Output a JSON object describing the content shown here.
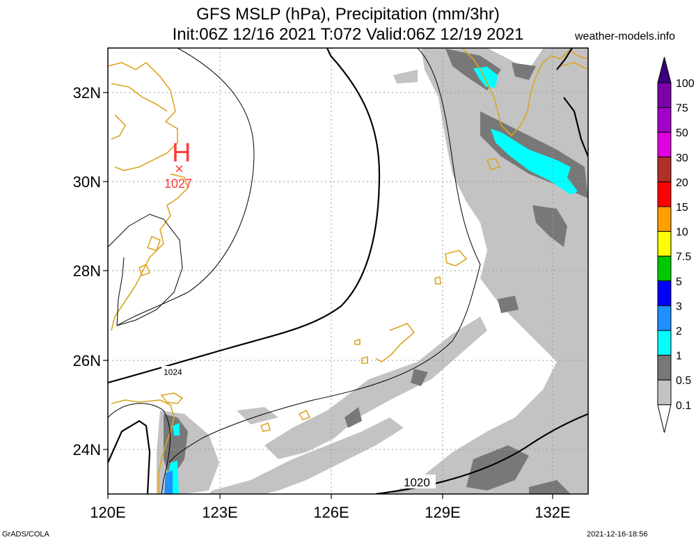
{
  "header": {
    "title_line1": "GFS MSLP (hPa), Precipitation (mm/3hr)",
    "title_line2": "Init:06Z 12/16 2021 T:072 Valid:06Z 12/19 2021",
    "site": "weather-models.info"
  },
  "footer": {
    "left": "GrADS/COLA",
    "right": "2021-12-16-18:56"
  },
  "map": {
    "lon_labels": [
      "120E",
      "123E",
      "126E",
      "129E",
      "132E"
    ],
    "lat_labels": [
      "32N",
      "30N",
      "28N",
      "26N",
      "24N"
    ],
    "high_symbol": "H",
    "high_marker": "×",
    "high_value": "1027",
    "contour_labels": [
      "1024",
      "1020"
    ]
  },
  "legend": {
    "levels": [
      "100",
      "75",
      "50",
      "30",
      "20",
      "15",
      "10",
      "7.5",
      "5",
      "3",
      "2",
      "1",
      "0.5",
      "0.1"
    ],
    "colors": {
      "top": "#3b007d",
      "100": "#7a00a8",
      "75": "#a000c8",
      "50": "#e000e0",
      "30": "#b03028",
      "20": "#ff0000",
      "15": "#ffa000",
      "10": "#ffff00",
      "7.5": "#00c800",
      "5": "#0000ff",
      "3": "#1e90ff",
      "2": "#00ffff",
      "1": "#787878",
      "0.5": "#c3c3c3",
      "0.1": "#ffffff"
    }
  }
}
